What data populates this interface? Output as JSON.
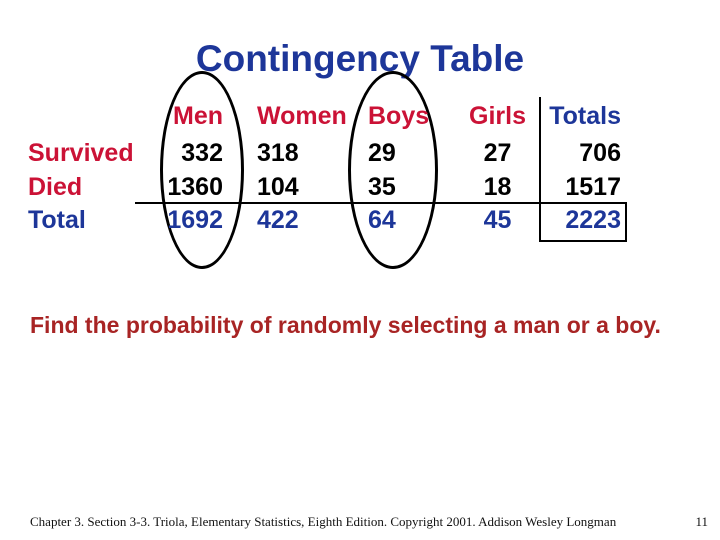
{
  "slide": {
    "title": "Contingency Table",
    "question": "Find the probability of randomly selecting a man or a boy.",
    "footer": {
      "citation": "Chapter 3.  Section 3-3.  Triola, Elementary Statistics, Eighth Edition. Copyright  2001.  Addison Wesley Longman",
      "page_number": "11"
    }
  },
  "table": {
    "header": [
      "Men",
      "Women",
      "Boys",
      "Girls",
      "Totals"
    ],
    "rows": [
      {
        "label": "Survived",
        "values": [
          "332",
          "318",
          "29",
          "27",
          "706"
        ]
      },
      {
        "label": "Died",
        "values": [
          "1360",
          "104",
          "35",
          "18",
          "1517"
        ]
      },
      {
        "label": "Total",
        "values": [
          "1692",
          "422",
          "64",
          "45",
          "2223"
        ]
      }
    ]
  },
  "chart_data": {
    "type": "table",
    "title": "Contingency Table",
    "columns": [
      "",
      "Men",
      "Women",
      "Boys",
      "Girls",
      "Totals"
    ],
    "rows": [
      [
        "Survived",
        332,
        318,
        29,
        27,
        706
      ],
      [
        "Died",
        1360,
        104,
        35,
        18,
        1517
      ],
      [
        "Total",
        1692,
        422,
        64,
        45,
        2223
      ]
    ],
    "annotations": [
      "hand-drawn ellipse circling the Men column",
      "hand-drawn ellipse circling the Boys column",
      "rectangle box around grand total 2223",
      "vertical rule separating Girls from Totals",
      "horizontal rule separating Died row from Total row"
    ]
  },
  "colors": {
    "accent_red": "#cb1236",
    "accent_blue": "#1d3699",
    "question_red": "#a82424",
    "data_black": "#000000",
    "background": "#ffffff"
  }
}
